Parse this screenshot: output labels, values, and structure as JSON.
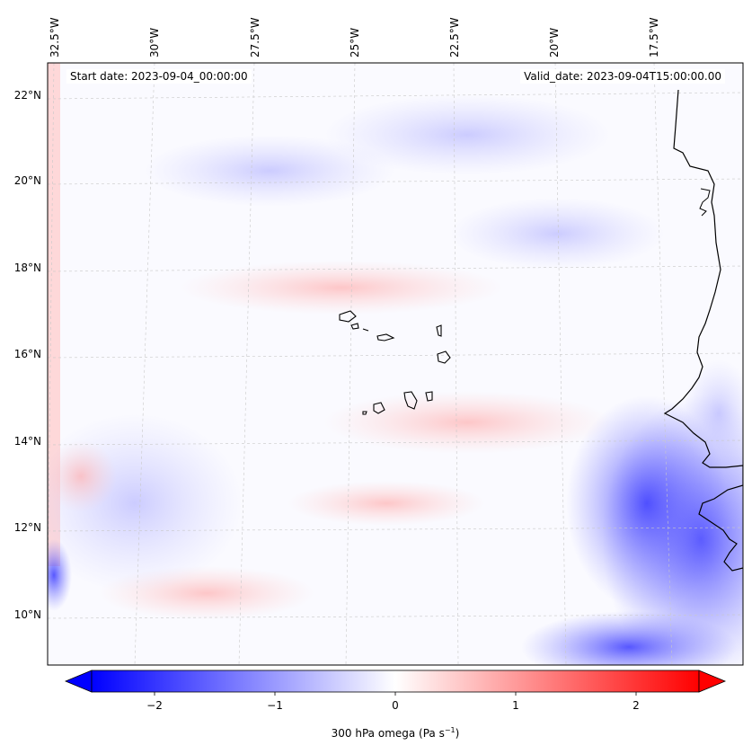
{
  "map": {
    "start_label": "Start date: 2023-09-04_00:00:00",
    "valid_label": "Valid_date: 2023-09-04T15:00:00.00",
    "lon_labels": [
      "32.5°W",
      "30°W",
      "27.5°W",
      "25°W",
      "22.5°W",
      "20°W",
      "17.5°W"
    ],
    "lat_labels": [
      "22°N",
      "20°N",
      "18°N",
      "16°N",
      "14°N",
      "12°N",
      "10°N"
    ]
  },
  "colorbar": {
    "ticks": [
      "−2",
      "−1",
      "0",
      "1",
      "2"
    ],
    "label_main": "300 hPa omega (Pa s",
    "label_sup": "−1",
    "label_end": ")",
    "colors": {
      "neg": "#0000ff",
      "zero": "#ffffff",
      "pos": "#ff0000"
    }
  }
}
